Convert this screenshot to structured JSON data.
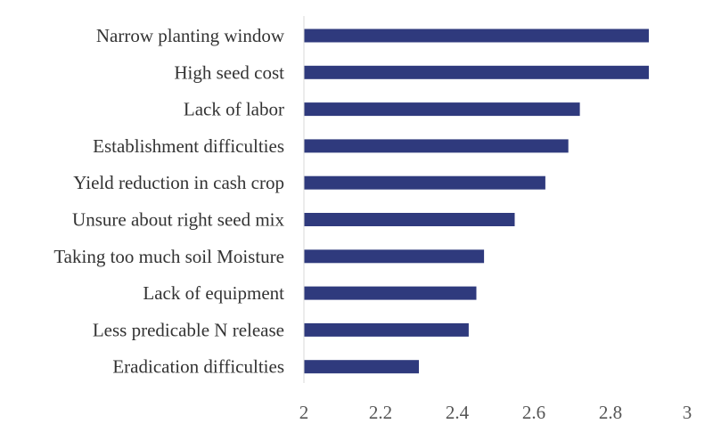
{
  "chart_data": {
    "type": "bar",
    "orientation": "horizontal",
    "categories": [
      "Narrow planting window",
      "High seed cost",
      "Lack of labor",
      "Establishment difficulties",
      "Yield reduction in cash crop",
      "Unsure about right seed mix",
      "Taking too much soil Moisture",
      "Lack of equipment",
      "Less predicable N release",
      "Eradication difficulties"
    ],
    "values": [
      2.9,
      2.9,
      2.72,
      2.69,
      2.63,
      2.55,
      2.47,
      2.45,
      2.43,
      2.3
    ],
    "xlim": [
      2,
      3
    ],
    "xticks": [
      "2",
      "2.2",
      "2.4",
      "2.6",
      "2.8",
      "3"
    ],
    "grid": false,
    "legend": "none",
    "bar_color": "#2f3a7d",
    "axis_color": "#d9d9d9"
  }
}
